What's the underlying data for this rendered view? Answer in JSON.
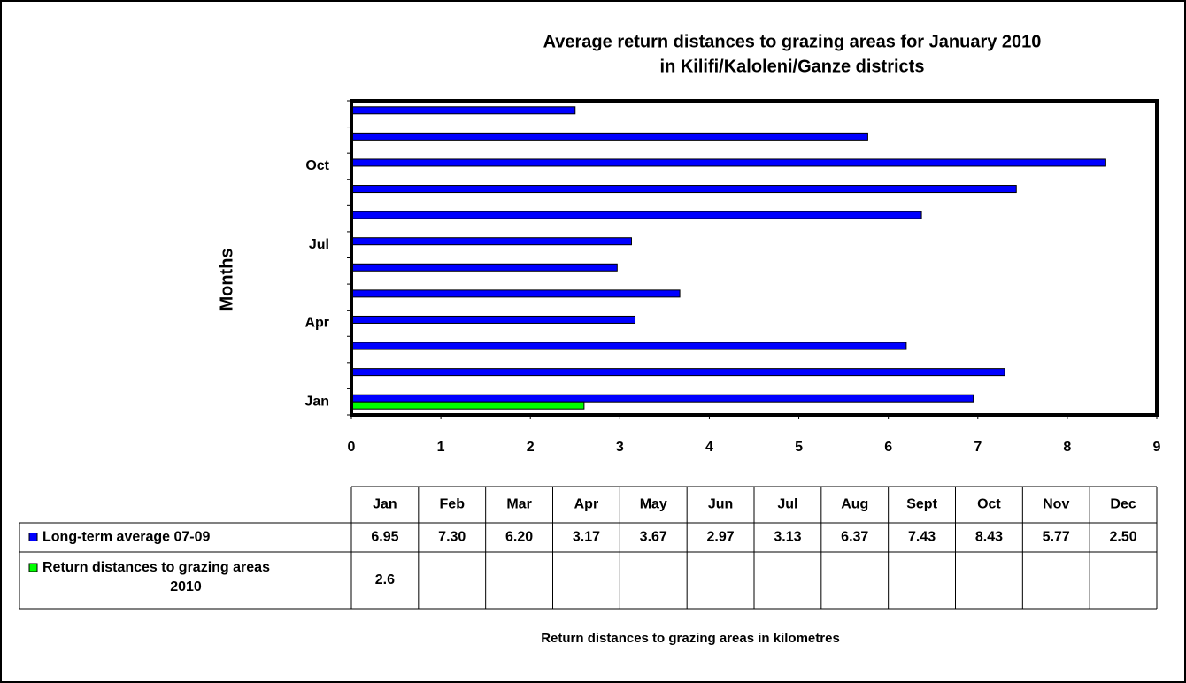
{
  "chart_data": {
    "type": "bar",
    "orientation": "horizontal",
    "title": [
      "Average return distances to grazing areas for January 2010",
      "in Kilifi/Kaloleni/Ganze districts"
    ],
    "x_label": "Return distances to grazing areas in kilometres",
    "y_label": "Months",
    "categories": [
      "Jan",
      "Feb",
      "Mar",
      "Apr",
      "May",
      "Jun",
      "Jul",
      "Aug",
      "Sept",
      "Oct",
      "Nov",
      "Dec"
    ],
    "axis_category_labels": [
      0,
      3,
      6,
      9
    ],
    "series": [
      {
        "name": "Long-term average 07-09",
        "color": "#0000ff",
        "values": [
          6.95,
          7.3,
          6.2,
          3.17,
          3.67,
          2.97,
          3.13,
          6.37,
          7.43,
          8.43,
          5.77,
          2.5
        ],
        "value_labels": [
          "6.95",
          "7.30",
          "6.20",
          "3.17",
          "3.67",
          "2.97",
          "3.13",
          "6.37",
          "7.43",
          "8.43",
          "5.77",
          "2.50"
        ]
      },
      {
        "name": "Return distances to grazing areas 2010",
        "color": "#00ff00",
        "values": [
          2.6,
          null,
          null,
          null,
          null,
          null,
          null,
          null,
          null,
          null,
          null,
          null
        ]
      }
    ],
    "xlim": [
      0,
      9
    ],
    "xticks": [
      0,
      1,
      2,
      3,
      4,
      5,
      6,
      7,
      8,
      9
    ],
    "grid": false,
    "data_table": true
  }
}
